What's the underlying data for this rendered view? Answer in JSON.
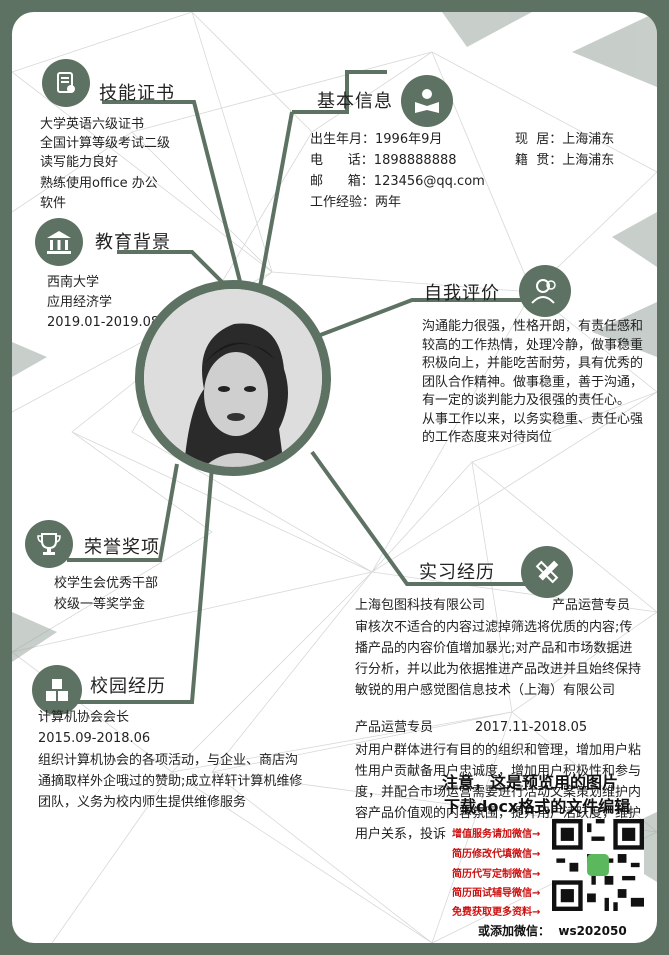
{
  "colors": {
    "accent": "#5d7263",
    "ad_red": "#cc1111"
  },
  "basic": {
    "title": "基本信息",
    "birth": "出生年月：1996年9月",
    "phone": "电      话：1898888888",
    "email": "邮      箱：123456@qq.com",
    "experience": "工作经验：两年",
    "residence": "现  居：上海浦东",
    "hometown": "籍  贯：上海浦东"
  },
  "skills": {
    "title": "技能证书",
    "items": [
      "大学英语六级证书",
      "全国计算等级考试二级",
      "读写能力良好",
      "熟练使用office 办公",
      "软件"
    ]
  },
  "education": {
    "title": "教育背景",
    "school": "西南大学",
    "major": "应用经济学",
    "period": "2019.01-2019.08"
  },
  "self_eval": {
    "title": "自我评价",
    "text": "沟通能力很强，性格开朗，有责任感和较高的工作热情，处理冷静，做事稳重积极向上，并能吃苦耐劳，具有优秀的团队合作精神。做事稳重，善于沟通，有一定的谈判能力及很强的责任心。\n从事工作以来，以务实稳重、责任心强的工作态度来对待岗位"
  },
  "honors": {
    "title": "荣誉奖项",
    "items": [
      "校学生会优秀干部",
      "校级一等奖学金"
    ]
  },
  "internship": {
    "title": "实习经历",
    "company1": "上海包图科技有限公司",
    "position1": "产品运营专员",
    "text1": "审核次不适合的内容过滤掉筛选将优质的内容;传播产品的内容价值增加暴光;对产品和市场数据进行分析，并以此为依据推进产品改进并且始终保持敏锐的用户感觉图信息技术（上海）有限公司",
    "position2": "产品运营专员",
    "period2": "2017.11-2018.05",
    "text2": "对用户群体进行有目的的组织和管理，增加用户粘性用户贡献备用户忠诚度，增加用户积极性和参与度，并配合市场运营需要进行活动文案策划维护内容产品价值观的内容氛围，提升用户活跃度，维护用户关系，投诉"
  },
  "campus": {
    "title": "校园经历",
    "role": "计算机协会会长",
    "period": "2015.09-2018.06",
    "text": "组织计算机协会的各项活动，与企业、商店沟通摘取样外企哦过的赞助;成立样轩计算机维修团队，义务为校内师生提供维修服务"
  },
  "watermark": {
    "line1": "注意，这是预览用的图片",
    "line2": "下载docx格式的文件编辑"
  },
  "ad": {
    "lines": [
      "增值服务请加微信→",
      "简历修改代填微信→",
      "简历代写定制微信→",
      "简历面试辅导微信→",
      "免费获取更多资料→"
    ],
    "wechat": "或添加微信：  ws202050"
  }
}
